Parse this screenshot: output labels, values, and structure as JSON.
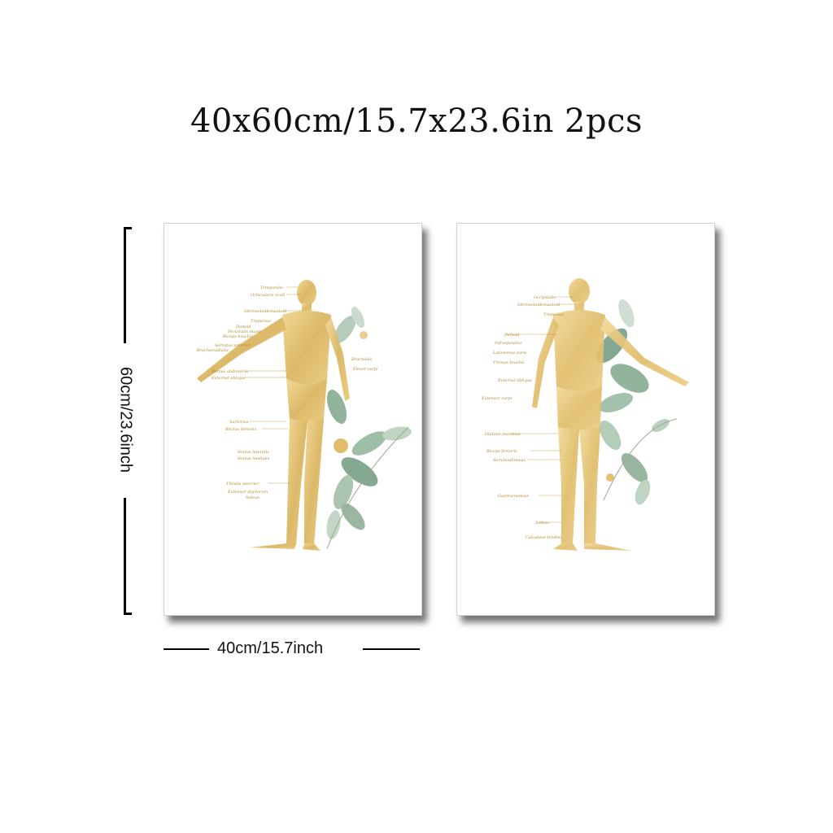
{
  "title": "40x60cm/15.7x23.6in 2pcs",
  "dimensions": {
    "height_label": "60cm/23.6inch",
    "width_label": "40cm/15.7inch"
  },
  "colors": {
    "gold": "#d9b25a",
    "gold_dark": "#b38a2e",
    "leaf_green": "#8fae98",
    "leaf_dark": "#5f8a72",
    "shadow": "#000000"
  },
  "posters": [
    {
      "view": "front",
      "labels": [
        "Temporalis",
        "Orbicularis oculi",
        "Sternocleidomastoid",
        "Trapezius",
        "Deltoid",
        "Pectoralis major",
        "Biceps brachii",
        "Serratus anterior",
        "Brachioradialis",
        "Rectus abdominis",
        "External oblique",
        "Sartorius",
        "Rectus femoris",
        "Vastus lateralis",
        "Vastus medialis",
        "Tibialis anterior",
        "Extensor digitorum",
        "Soleus",
        "Brachialis",
        "Flexor carpi"
      ]
    },
    {
      "view": "back",
      "labels": [
        "Occipitalis",
        "Sternocleidomastoid",
        "Trapezius",
        "Deltoid",
        "Infraspinatus",
        "Latissimus dorsi",
        "Triceps brachii",
        "External oblique",
        "Extensor carpi",
        "Gluteus maximus",
        "Biceps femoris",
        "Semitendinosus",
        "Gastrocnemius",
        "Soleus",
        "Calcaneal tendon"
      ]
    }
  ]
}
